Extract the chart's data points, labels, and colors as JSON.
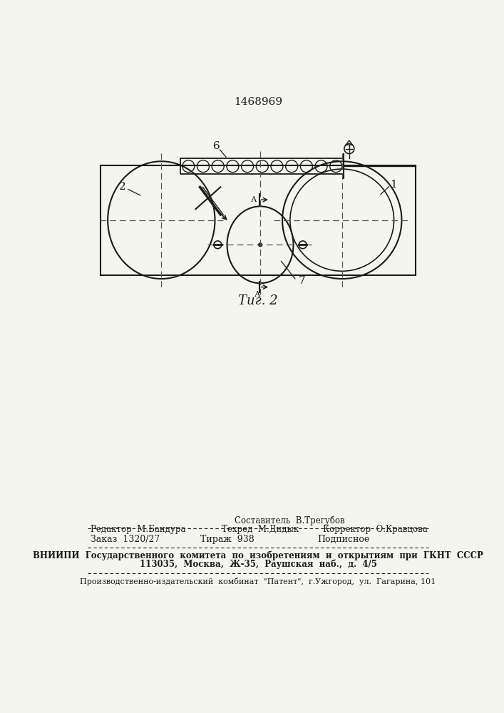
{
  "patent_number": "1468969",
  "bg_color": "#f5f5f0",
  "line_color": "#1a1a1a",
  "dashed_color": "#555555",
  "fig_caption": "Τиг. 2",
  "footer": {
    "line0_center": "Составитель  В.Трегубов",
    "line1_left": "Редактор  М.Бандура",
    "line1_center": "Техред  М.Дидык",
    "line1_right": "Корректор  О.Кравцова",
    "line2_left": "Заказ  1320/27",
    "line2_center": "Тираж  938",
    "line2_right": "Подписное",
    "line3": "ВНИИПИ  Государственного  комитета  по  изобретениям  и  открытиям  при  ГКНТ  СССР",
    "line4": "113035,  Москва,  Ж-35,  Раушская  наб.,  д.  4/5",
    "line5": "Производственно-издательский  комбинат  \"Патент\",  г.Ужгород,  ул.  Гагарина, 101"
  }
}
